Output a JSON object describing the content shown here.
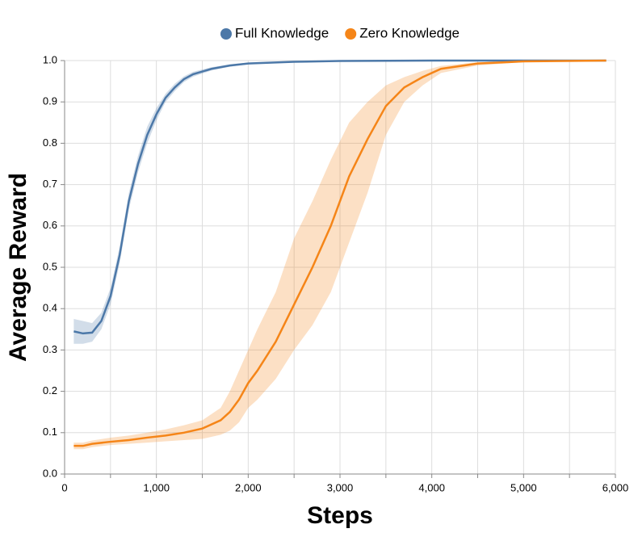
{
  "chart_data": {
    "type": "line",
    "xlabel": "Steps",
    "ylabel": "Average Reward",
    "xlim": [
      0,
      6000
    ],
    "ylim": [
      0,
      1
    ],
    "xticks": [
      {
        "value": 0,
        "label": "0"
      },
      {
        "value": 1000,
        "label": "1,000"
      },
      {
        "value": 2000,
        "label": "2,000"
      },
      {
        "value": 3000,
        "label": "3,000"
      },
      {
        "value": 4000,
        "label": "4,000"
      },
      {
        "value": 5000,
        "label": "5,000"
      },
      {
        "value": 6000,
        "label": "6,000"
      }
    ],
    "x_minor_ticks": [
      500,
      1500,
      2500,
      3500,
      4500,
      5500
    ],
    "yticks": [
      {
        "value": 0,
        "label": "0.0"
      },
      0.1,
      0.2,
      0.3,
      0.4,
      0.5,
      0.6,
      0.7,
      0.8,
      0.9,
      {
        "value": 1,
        "label": "1.0"
      }
    ],
    "grid": true,
    "legend": "top",
    "series": [
      {
        "name": "Full Knowledge",
        "color": "#4c78a8",
        "x": [
          100,
          200,
          300,
          400,
          500,
          600,
          700,
          800,
          900,
          1000,
          1100,
          1200,
          1300,
          1400,
          1600,
          1800,
          2000,
          2500,
          3000,
          4000,
          5000,
          5900
        ],
        "values": [
          0.345,
          0.34,
          0.342,
          0.37,
          0.43,
          0.53,
          0.66,
          0.75,
          0.82,
          0.87,
          0.91,
          0.935,
          0.955,
          0.967,
          0.98,
          0.988,
          0.993,
          0.997,
          0.999,
          1.0,
          1.0,
          1.0
        ],
        "lower": [
          0.315,
          0.315,
          0.32,
          0.35,
          0.41,
          0.51,
          0.64,
          0.73,
          0.8,
          0.855,
          0.9,
          0.926,
          0.948,
          0.961,
          0.976,
          0.985,
          0.991,
          0.996,
          0.998,
          0.999,
          1.0,
          1.0
        ],
        "upper": [
          0.375,
          0.37,
          0.365,
          0.39,
          0.45,
          0.55,
          0.68,
          0.77,
          0.84,
          0.885,
          0.92,
          0.944,
          0.962,
          0.973,
          0.984,
          0.991,
          0.995,
          0.998,
          1.0,
          1.0,
          1.0,
          1.0
        ]
      },
      {
        "name": "Zero Knowledge",
        "color": "#f58518",
        "x": [
          100,
          200,
          300,
          500,
          700,
          900,
          1100,
          1300,
          1500,
          1700,
          1800,
          1900,
          2000,
          2100,
          2300,
          2500,
          2700,
          2900,
          3100,
          3300,
          3500,
          3700,
          3900,
          4100,
          4500,
          5000,
          5900
        ],
        "values": [
          0.068,
          0.068,
          0.073,
          0.078,
          0.082,
          0.088,
          0.093,
          0.1,
          0.11,
          0.13,
          0.15,
          0.18,
          0.22,
          0.25,
          0.32,
          0.41,
          0.5,
          0.6,
          0.72,
          0.81,
          0.89,
          0.935,
          0.96,
          0.98,
          0.993,
          0.998,
          1.0
        ],
        "lower": [
          0.06,
          0.06,
          0.065,
          0.07,
          0.073,
          0.076,
          0.079,
          0.082,
          0.085,
          0.095,
          0.105,
          0.125,
          0.16,
          0.18,
          0.23,
          0.3,
          0.36,
          0.44,
          0.56,
          0.68,
          0.82,
          0.9,
          0.94,
          0.97,
          0.988,
          0.996,
          0.999
        ],
        "upper": [
          0.076,
          0.076,
          0.081,
          0.088,
          0.093,
          0.1,
          0.108,
          0.118,
          0.13,
          0.16,
          0.2,
          0.25,
          0.3,
          0.35,
          0.44,
          0.57,
          0.66,
          0.76,
          0.85,
          0.9,
          0.94,
          0.96,
          0.975,
          0.987,
          0.996,
          0.999,
          1.0
        ]
      }
    ]
  }
}
